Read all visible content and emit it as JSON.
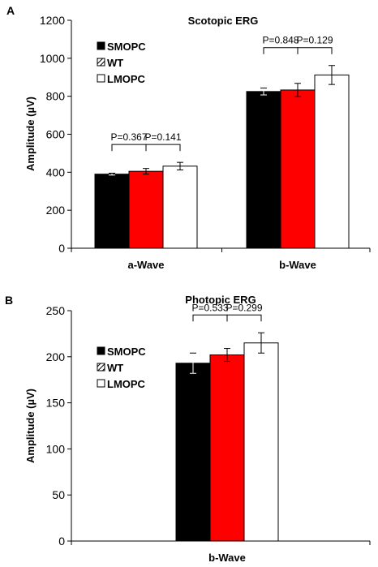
{
  "chart_data": [
    {
      "type": "bar",
      "panel_label": "A",
      "title": "Scotopic ERG",
      "ylabel": "Amplitude (µV)",
      "xlabel": "",
      "categories": [
        "a-Wave",
        "b-Wave"
      ],
      "ylim": [
        0,
        1200
      ],
      "yticks": [
        0,
        200,
        400,
        600,
        800,
        1000,
        1200
      ],
      "grid": false,
      "legend_position": "top-left",
      "series": [
        {
          "name": "SMOPC",
          "values": [
            390,
            825
          ],
          "errors": [
            5,
            18
          ],
          "color": "#000000",
          "hatch": false
        },
        {
          "name": "WT",
          "values": [
            405,
            833
          ],
          "errors": [
            15,
            35
          ],
          "color": "#ff0000",
          "hatch": true
        },
        {
          "name": "LMOPC",
          "values": [
            432,
            912
          ],
          "errors": [
            20,
            50
          ],
          "color": "#ffffff",
          "hatch": false
        }
      ],
      "annotations": [
        {
          "category": 0,
          "pairs": [
            [
              "P=0.367",
              0,
              1
            ],
            [
              "P=0.141",
              1,
              2
            ]
          ]
        },
        {
          "category": 1,
          "pairs": [
            [
              "P=0.848",
              0,
              1
            ],
            [
              "P=0.129",
              1,
              2
            ]
          ]
        }
      ]
    },
    {
      "type": "bar",
      "panel_label": "B",
      "title": "Photopic ERG",
      "ylabel": "Amplitude (µV)",
      "xlabel": "",
      "categories": [
        "b-Wave"
      ],
      "ylim": [
        0,
        250
      ],
      "yticks": [
        0,
        50,
        100,
        150,
        200,
        250
      ],
      "grid": false,
      "legend_position": "middle-left",
      "series": [
        {
          "name": "SMOPC",
          "values": [
            193
          ],
          "errors": [
            11
          ],
          "color": "#000000",
          "hatch": false
        },
        {
          "name": "WT",
          "values": [
            202
          ],
          "errors": [
            7
          ],
          "color": "#ff0000",
          "hatch": true
        },
        {
          "name": "LMOPC",
          "values": [
            215
          ],
          "errors": [
            11
          ],
          "color": "#ffffff",
          "hatch": false
        }
      ],
      "annotations": [
        {
          "category": 0,
          "pairs": [
            [
              "P=0.533",
              0,
              1
            ],
            [
              "P=0.299",
              1,
              2
            ]
          ]
        }
      ]
    }
  ]
}
